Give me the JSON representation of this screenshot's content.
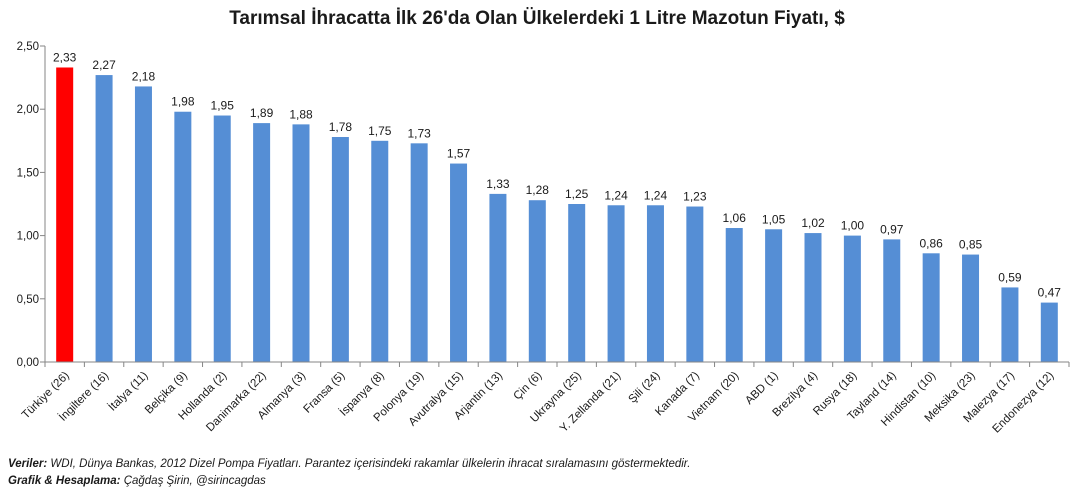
{
  "chart_data": {
    "type": "bar",
    "title": "Tarımsal İhracatta İlk 26'da Olan Ülkelerdeki 1 Litre Mazotun Fiyatı, $",
    "xlabel": "",
    "ylabel": "",
    "ylim": [
      0,
      2.5
    ],
    "yticks": [
      "0,00",
      "0,50",
      "1,00",
      "1,50",
      "2,00",
      "2,50"
    ],
    "grid": false,
    "categories": [
      "Türkiye (26)",
      "İngiltere (16)",
      "İtalya (11)",
      "Belçika (9)",
      "Hollanda (2)",
      "Danimarka (22)",
      "Almanya (3)",
      "Fransa (5)",
      "İspanya (8)",
      "Polonya (19)",
      "Avutralya (15)",
      "Arjantin (13)",
      "Çin (6)",
      "Ukrayna (25)",
      "Y. Zellanda (21)",
      "Şili (24)",
      "Kanada (7)",
      "Vietnam (20)",
      "ABD (1)",
      "Brezilya (4)",
      "Rusya (18)",
      "Tayland (14)",
      "Hindistan (10)",
      "Meksika (23)",
      "Malezya (17)",
      "Endonezya (12)"
    ],
    "values": [
      2.33,
      2.27,
      2.18,
      1.98,
      1.95,
      1.89,
      1.88,
      1.78,
      1.75,
      1.73,
      1.57,
      1.33,
      1.28,
      1.25,
      1.24,
      1.24,
      1.23,
      1.06,
      1.05,
      1.02,
      1.0,
      0.97,
      0.86,
      0.85,
      0.59,
      0.47
    ],
    "value_labels": [
      "2,33",
      "2,27",
      "2,18",
      "1,98",
      "1,95",
      "1,89",
      "1,88",
      "1,78",
      "1,75",
      "1,73",
      "1,57",
      "1,33",
      "1,28",
      "1,25",
      "1,24",
      "1,24",
      "1,23",
      "1,06",
      "1,05",
      "1,02",
      "1,00",
      "0,97",
      "0,86",
      "0,85",
      "0,59",
      "0,47"
    ],
    "highlight_index": 0,
    "colors": {
      "bar": "#558ED5",
      "highlight": "#FF0000",
      "axis": "#868686"
    }
  },
  "footer": {
    "source_label": "Veriler:",
    "source_text": " WDI, Dünya Bankas, 2012 Dizel Pompa Fiyatları. Parantez içerisindeki rakamlar ülkelerin ihracat sıralamasını göstermektedir.",
    "credit_label": "Grafik & Hesaplama:",
    "credit_text": " Çağdaş Şirin, @sirincagdas"
  }
}
